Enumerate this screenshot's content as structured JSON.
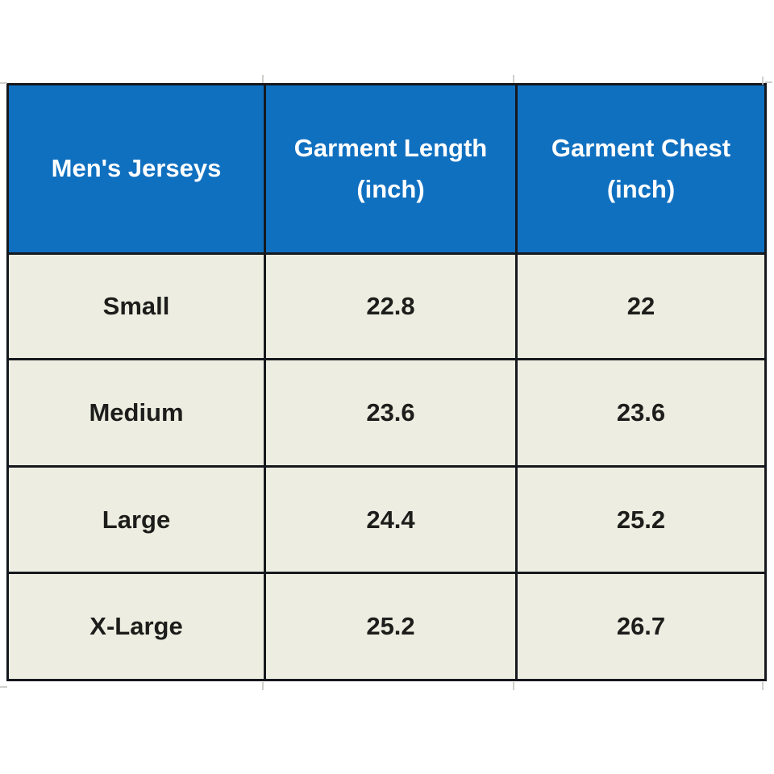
{
  "table": {
    "header": {
      "bg_color": "#1070c0",
      "text_color": "#ffffff",
      "col1": "Men's Jerseys",
      "col2_line1": "Garment Length",
      "col2_line2": "(inch)",
      "col3_line1": "Garment Chest",
      "col3_line2": "(inch)"
    },
    "body_bg_color": "#edeee1",
    "body_text_color": "#1d1d1b",
    "border_color": "#15181d",
    "rows": [
      {
        "size": "Small",
        "length": "22.8",
        "chest": "22"
      },
      {
        "size": "Medium",
        "length": "23.6",
        "chest": "23.6"
      },
      {
        "size": "Large",
        "length": "24.4",
        "chest": "25.2"
      },
      {
        "size": "X-Large",
        "length": "25.2",
        "chest": "26.7"
      }
    ]
  },
  "chart_data": {
    "type": "table",
    "title": "Men's Jerseys size chart",
    "columns": [
      "Men's Jerseys",
      "Garment Length (inch)",
      "Garment Chest (inch)"
    ],
    "rows": [
      [
        "Small",
        22.8,
        22
      ],
      [
        "Medium",
        23.6,
        23.6
      ],
      [
        "Large",
        24.4,
        25.2
      ],
      [
        "X-Large",
        25.2,
        26.7
      ]
    ],
    "layout": {
      "header_bg": "#1070c0",
      "body_bg": "#edeee1",
      "grid": "on"
    }
  }
}
